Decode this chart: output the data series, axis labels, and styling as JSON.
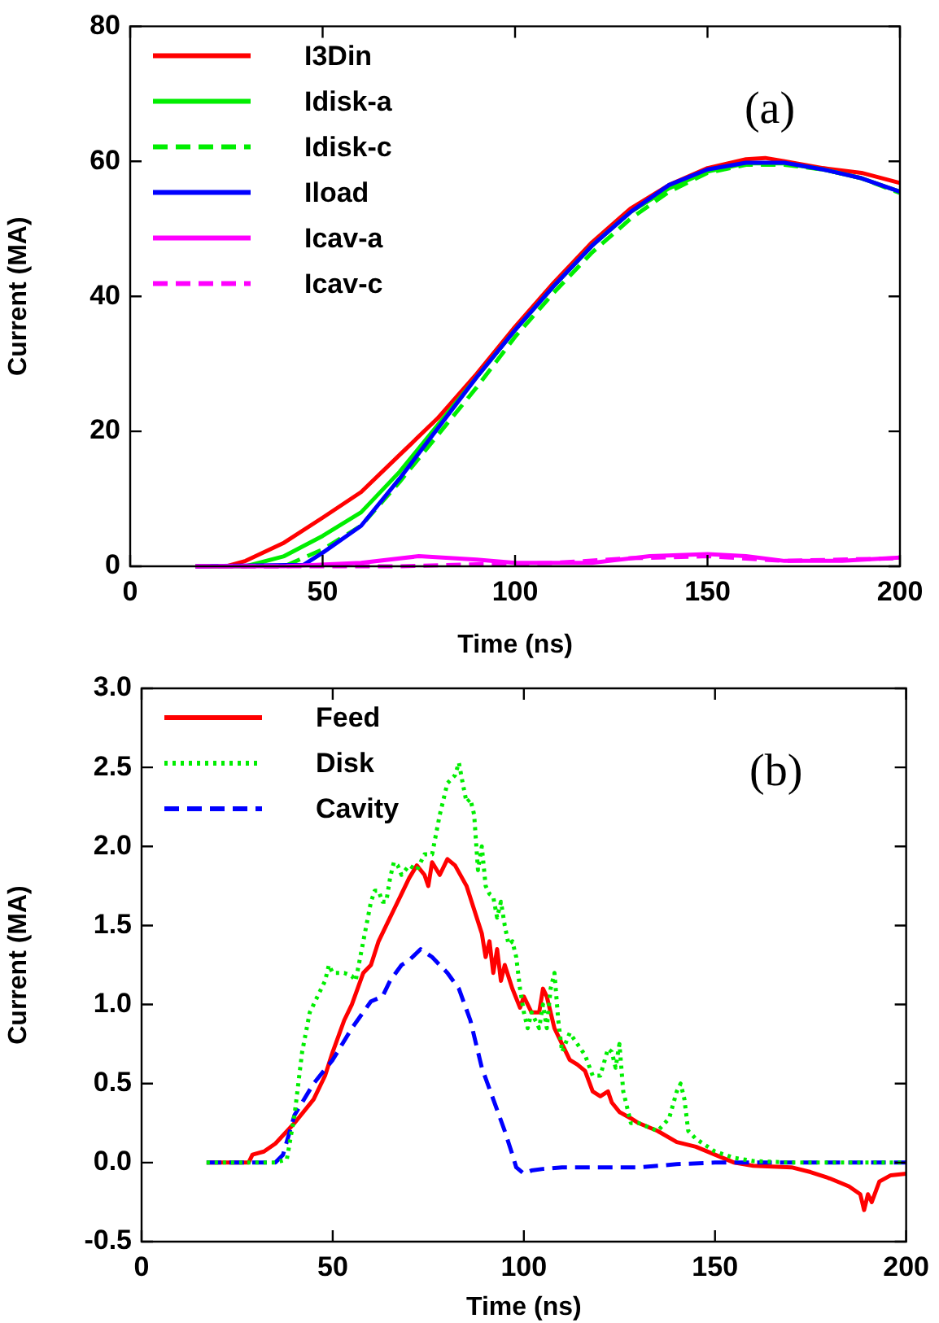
{
  "chart_data": [
    {
      "type": "line",
      "xlabel": "Time (ns)",
      "ylabel": "Current (MA)",
      "xlim": [
        0,
        200
      ],
      "ylim": [
        0,
        80
      ],
      "xticks": [
        0,
        50,
        100,
        150,
        200
      ],
      "yticks": [
        0,
        20,
        40,
        60,
        80
      ],
      "legend": "top left",
      "annotations": [
        "(a)"
      ],
      "series": [
        {
          "name": "I3Din",
          "color": "#ff0000",
          "line_style": "solid",
          "x": [
            17,
            25,
            30,
            40,
            50,
            60,
            70,
            80,
            90,
            100,
            110,
            120,
            130,
            140,
            150,
            160,
            165,
            170,
            180,
            190,
            200
          ],
          "values": [
            0,
            0,
            0.8,
            3.5,
            7.2,
            11,
            16.5,
            22,
            28.5,
            35.5,
            42,
            48,
            53,
            56.5,
            59,
            60.3,
            60.5,
            60,
            59,
            58.3,
            56.8
          ]
        },
        {
          "name": "Idisk-a",
          "color": "#00ee00",
          "line_style": "solid",
          "x": [
            17,
            30,
            40,
            50,
            60,
            70,
            80,
            90,
            100,
            110,
            120,
            130,
            140,
            150,
            160,
            170,
            180,
            190,
            200
          ],
          "values": [
            0,
            0,
            1.5,
            4.5,
            8,
            14,
            21,
            28,
            35,
            41.5,
            47.5,
            52.5,
            56,
            58.5,
            59.7,
            59.7,
            58.8,
            57.5,
            55.5
          ]
        },
        {
          "name": "Idisk-c",
          "color": "#00ee00",
          "line_style": "dashed",
          "x": [
            17,
            40,
            50,
            60,
            70,
            80,
            90,
            100,
            110,
            120,
            130,
            140,
            150,
            160,
            170,
            180,
            190,
            200
          ],
          "values": [
            0,
            0,
            2.5,
            6,
            12.5,
            19.5,
            26.5,
            34,
            40.5,
            46.5,
            51.5,
            55.5,
            58.3,
            59.5,
            59.5,
            58.8,
            57.5,
            55.3
          ]
        },
        {
          "name": "Iload",
          "color": "#0000ff",
          "line_style": "solid",
          "x": [
            17,
            45,
            50,
            60,
            70,
            80,
            90,
            100,
            110,
            120,
            130,
            140,
            150,
            160,
            170,
            180,
            190,
            200
          ],
          "values": [
            0,
            0.2,
            2,
            6,
            13,
            20.5,
            28,
            35,
            41.5,
            47.5,
            52.5,
            56.5,
            58.8,
            59.8,
            59.8,
            58.8,
            57.5,
            55.5
          ]
        },
        {
          "name": "Icav-a",
          "color": "#ff00ff",
          "line_style": "solid",
          "x": [
            17,
            40,
            60,
            75,
            90,
            100,
            120,
            135,
            150,
            160,
            170,
            185,
            200
          ],
          "values": [
            0,
            0,
            0.5,
            1.5,
            1,
            0.5,
            0.5,
            1.5,
            1.8,
            1.5,
            0.8,
            0.8,
            1.3
          ]
        },
        {
          "name": "Icav-c",
          "color": "#ff00ff",
          "line_style": "dashed",
          "x": [
            17,
            50,
            70,
            90,
            110,
            130,
            150,
            170,
            200
          ],
          "values": [
            0,
            0,
            0,
            0.3,
            0.5,
            1.2,
            1.5,
            0.8,
            1.2
          ]
        }
      ]
    },
    {
      "type": "line",
      "xlabel": "Time (ns)",
      "ylabel": "Current (MA)",
      "xlim": [
        0,
        200
      ],
      "ylim": [
        -0.5,
        3
      ],
      "xticks": [
        0,
        50,
        100,
        150,
        200
      ],
      "yticks": [
        {
          "value": -0.5,
          "label": "-0.5"
        },
        {
          "value": 0,
          "label": "0.0"
        },
        {
          "value": 0.5,
          "label": "0.5"
        },
        {
          "value": 1,
          "label": "1.0"
        },
        {
          "value": 1.5,
          "label": "1.5"
        },
        {
          "value": 2,
          "label": "2.0"
        },
        {
          "value": 2.5,
          "label": "2.5"
        },
        {
          "value": 3,
          "label": "3.0"
        }
      ],
      "legend": "top left",
      "annotations": [
        "(b)"
      ],
      "series": [
        {
          "name": "Feed",
          "color": "#ff0000",
          "line_style": "solid",
          "x": [
            17,
            28,
            29,
            32,
            35,
            40,
            45,
            48,
            50,
            53,
            55,
            58,
            60,
            62,
            64,
            66,
            68,
            70,
            72,
            74,
            75,
            76,
            78,
            80,
            82,
            85,
            87,
            89,
            90,
            91,
            92,
            93,
            94,
            95,
            97,
            99,
            100,
            102,
            104,
            105,
            106,
            108,
            110,
            112,
            114,
            116,
            118,
            120,
            122,
            123,
            125,
            128,
            130,
            135,
            140,
            145,
            150,
            155,
            160,
            170,
            175,
            180,
            185,
            188,
            189,
            190,
            191,
            193,
            196,
            200
          ],
          "values": [
            0,
            0,
            0.05,
            0.07,
            0.12,
            0.25,
            0.4,
            0.55,
            0.7,
            0.9,
            1,
            1.2,
            1.25,
            1.4,
            1.5,
            1.6,
            1.7,
            1.8,
            1.88,
            1.82,
            1.75,
            1.9,
            1.82,
            1.92,
            1.88,
            1.75,
            1.6,
            1.45,
            1.3,
            1.4,
            1.2,
            1.35,
            1.15,
            1.25,
            1.1,
            0.98,
            1.05,
            0.95,
            0.95,
            1.1,
            1.05,
            0.85,
            0.75,
            0.65,
            0.62,
            0.58,
            0.45,
            0.42,
            0.45,
            0.38,
            0.32,
            0.28,
            0.25,
            0.2,
            0.13,
            0.1,
            0.05,
            0,
            -0.02,
            -0.03,
            -0.06,
            -0.1,
            -0.15,
            -0.2,
            -0.3,
            -0.2,
            -0.25,
            -0.12,
            -0.08,
            -0.07
          ]
        },
        {
          "name": "Disk",
          "color": "#00ee00",
          "line_style": "dotted",
          "x": [
            17,
            35,
            38,
            40,
            42,
            44,
            46,
            48,
            49,
            50,
            53,
            55,
            56,
            58,
            60,
            61,
            62,
            63,
            64,
            65,
            66,
            67,
            68,
            70,
            72,
            74,
            76,
            78,
            80,
            82,
            83,
            84,
            85,
            86,
            87,
            88,
            89,
            90,
            91,
            92,
            93,
            94,
            95,
            96,
            97,
            98,
            99,
            100,
            101,
            102,
            103,
            104,
            105,
            106,
            107,
            108,
            109,
            110,
            112,
            114,
            116,
            118,
            120,
            122,
            123,
            124,
            125,
            126,
            128,
            130,
            135,
            138,
            140,
            141,
            142,
            143,
            145,
            150,
            155,
            160,
            170,
            200
          ],
          "values": [
            0,
            0,
            0.02,
            0.3,
            0.7,
            0.95,
            1.05,
            1.15,
            1.25,
            1.2,
            1.2,
            1.18,
            1.15,
            1.4,
            1.65,
            1.72,
            1.72,
            1.65,
            1.65,
            1.8,
            1.9,
            1.88,
            1.82,
            1.88,
            1.85,
            1.95,
            1.95,
            2.2,
            2.4,
            2.45,
            2.53,
            2.4,
            2.28,
            2.3,
            2.2,
            1.85,
            2,
            1.75,
            1.7,
            1.68,
            1.55,
            1.65,
            1.5,
            1.38,
            1.4,
            1.3,
            1.1,
            0.95,
            0.85,
            0.95,
            0.9,
            0.85,
            1,
            0.85,
            1.1,
            1.2,
            0.9,
            0.7,
            0.82,
            0.75,
            0.68,
            0.55,
            0.55,
            0.72,
            0.7,
            0.6,
            0.75,
            0.45,
            0.25,
            0.25,
            0.2,
            0.28,
            0.45,
            0.5,
            0.4,
            0.2,
            0.15,
            0.07,
            0.03,
            0.01,
            0,
            0
          ]
        },
        {
          "name": "Cavity",
          "color": "#0000ff",
          "line_style": "dashed",
          "x": [
            17,
            35,
            37,
            40,
            45,
            50,
            55,
            60,
            63,
            65,
            68,
            70,
            73,
            76,
            80,
            83,
            86,
            89,
            92,
            95,
            97,
            98,
            100,
            102,
            105,
            110,
            120,
            130,
            140,
            150,
            200
          ],
          "values": [
            0,
            0,
            0.05,
            0.3,
            0.5,
            0.65,
            0.85,
            1.02,
            1.05,
            1.15,
            1.25,
            1.28,
            1.35,
            1.3,
            1.2,
            1.1,
            0.9,
            0.6,
            0.4,
            0.2,
            0.05,
            -0.03,
            -0.07,
            -0.05,
            -0.04,
            -0.03,
            -0.03,
            -0.03,
            -0.01,
            0,
            0
          ]
        }
      ]
    }
  ]
}
